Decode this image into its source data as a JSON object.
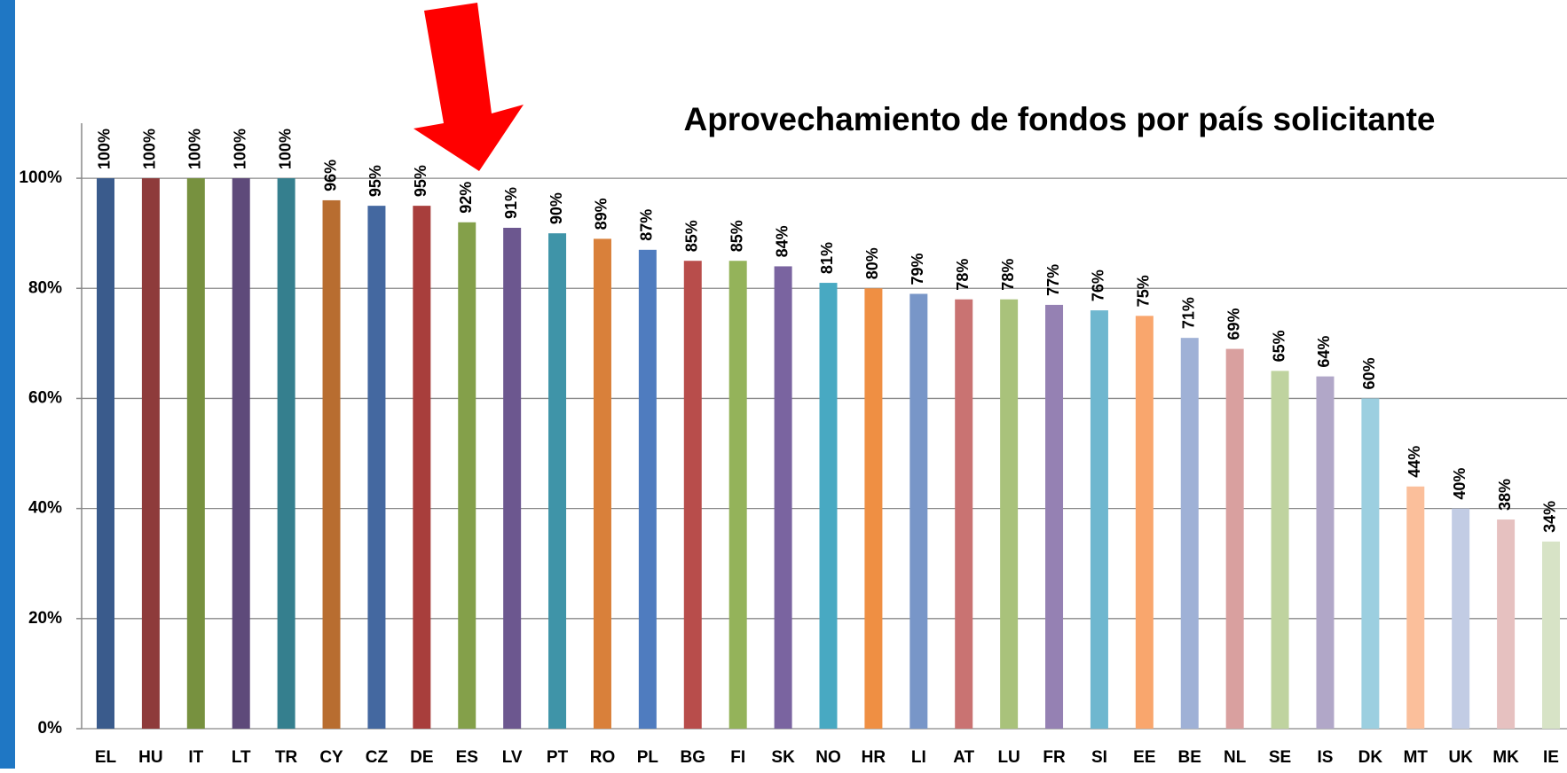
{
  "chart_data": {
    "type": "bar",
    "title": "Aprovechamiento de fondos por país solicitante",
    "categories": [
      "EL",
      "HU",
      "IT",
      "LT",
      "TR",
      "CY",
      "CZ",
      "DE",
      "ES",
      "LV",
      "PT",
      "RO",
      "PL",
      "BG",
      "FI",
      "SK",
      "NO",
      "HR",
      "LI",
      "AT",
      "LU",
      "FR",
      "SI",
      "EE",
      "BE",
      "NL",
      "SE",
      "IS",
      "DK",
      "MT",
      "UK",
      "MK",
      "IE"
    ],
    "values": [
      100,
      100,
      100,
      100,
      100,
      96,
      95,
      95,
      92,
      91,
      90,
      89,
      87,
      85,
      85,
      84,
      81,
      80,
      79,
      78,
      78,
      77,
      76,
      75,
      71,
      69,
      65,
      64,
      60,
      44,
      40,
      38,
      34
    ],
    "value_labels": [
      "100%",
      "100%",
      "100%",
      "100%",
      "100%",
      "96%",
      "95%",
      "95%",
      "92%",
      "91%",
      "90%",
      "89%",
      "87%",
      "85%",
      "85%",
      "84%",
      "81%",
      "80%",
      "79%",
      "78%",
      "78%",
      "77%",
      "76%",
      "75%",
      "71%",
      "69%",
      "65%",
      "64%",
      "60%",
      "44%",
      "40%",
      "38%",
      "34%"
    ],
    "colors": [
      "#3a5b8c",
      "#8e3b3b",
      "#77913f",
      "#5e4a7a",
      "#357f8e",
      "#b86d30",
      "#4468a0",
      "#a83e3c",
      "#84a04a",
      "#6c578f",
      "#3f94a8",
      "#d9803a",
      "#4f7cbf",
      "#b84d4b",
      "#94b35a",
      "#7a64a0",
      "#48a9c2",
      "#ef8f43",
      "#7896c8",
      "#c97372",
      "#a9c27b",
      "#9581b3",
      "#6fb7cf",
      "#f9a66d",
      "#9fb1d6",
      "#d9a09f",
      "#bfd39f",
      "#b1a7c8",
      "#9ccfe0",
      "#fbbf9b",
      "#c2cce4",
      "#e6c1c0",
      "#d7e3c6"
    ],
    "ylim": [
      0,
      110
    ],
    "yticks": [
      {
        "value": 0,
        "label": "0%"
      },
      {
        "value": 20,
        "label": "20%"
      },
      {
        "value": 40,
        "label": "40%"
      },
      {
        "value": 60,
        "label": "60%"
      },
      {
        "value": 80,
        "label": "80%"
      },
      {
        "value": 100,
        "label": "100%"
      }
    ],
    "grid": true
  }
}
